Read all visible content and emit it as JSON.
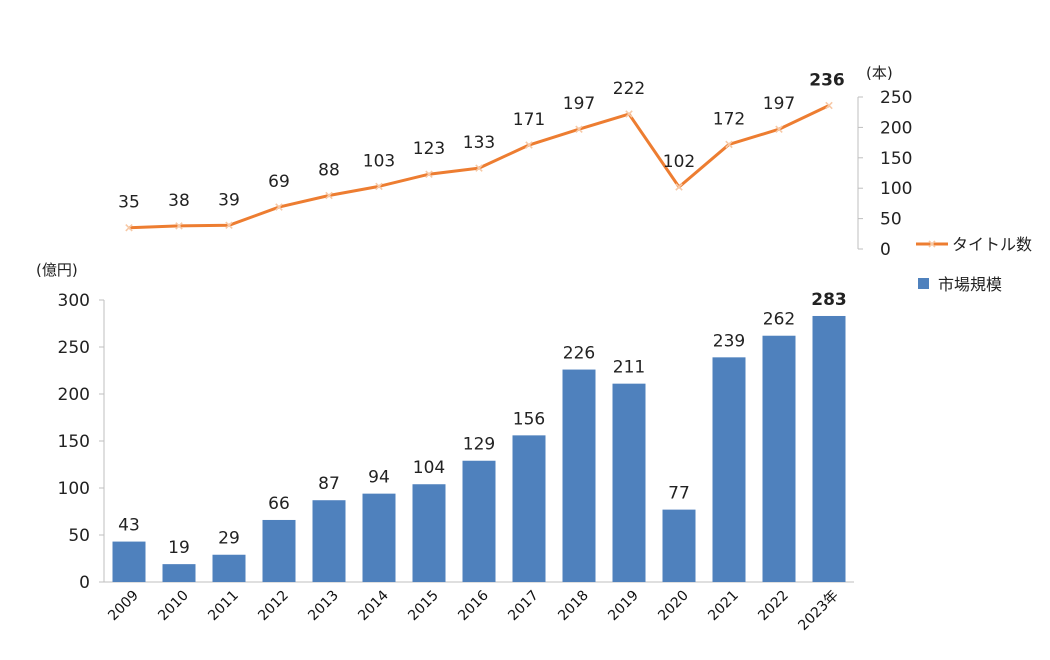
{
  "chart_data": [
    {
      "type": "line",
      "title": "",
      "xlabel": "",
      "ylabel": "",
      "y_unit": "(本)",
      "ylim": [
        0,
        250
      ],
      "y_ticks": [
        "0",
        "50",
        "100",
        "150",
        "200",
        "250"
      ],
      "axis_side": "right",
      "categories": [
        "2009",
        "2010",
        "2011",
        "2012",
        "2013",
        "2014",
        "2015",
        "2016",
        "2017",
        "2018",
        "2019",
        "2020",
        "2021",
        "2022",
        "2023年"
      ],
      "series": [
        {
          "name": "タイトル数",
          "values": [
            35,
            38,
            39,
            69,
            88,
            103,
            123,
            133,
            171,
            197,
            222,
            102,
            172,
            197,
            236
          ],
          "color": "#ED7D31",
          "marker": "x"
        }
      ],
      "data_labels": [
        "35",
        "38",
        "39",
        "69",
        "88",
        "103",
        "123",
        "133",
        "171",
        "197",
        "222",
        "102",
        "172",
        "197",
        "236"
      ],
      "highlight_label_color": "#ED7D31",
      "grid": false,
      "legend": "right"
    },
    {
      "type": "bar",
      "title": "",
      "xlabel": "",
      "ylabel": "",
      "y_unit": "(億円)",
      "ylim": [
        0,
        300
      ],
      "y_ticks": [
        "0",
        "50",
        "100",
        "150",
        "200",
        "250",
        "300"
      ],
      "axis_side": "left",
      "categories": [
        "2009",
        "2010",
        "2011",
        "2012",
        "2013",
        "2014",
        "2015",
        "2016",
        "2017",
        "2018",
        "2019",
        "2020",
        "2021",
        "2022",
        "2023年"
      ],
      "series": [
        {
          "name": "市場規模",
          "values": [
            43,
            19,
            29,
            66,
            87,
            94,
            104,
            129,
            156,
            226,
            211,
            77,
            239,
            262,
            283
          ],
          "color": "#4F81BD"
        }
      ],
      "data_labels": [
        "43",
        "19",
        "29",
        "66",
        "87",
        "94",
        "104",
        "129",
        "156",
        "226",
        "211",
        "77",
        "239",
        "262",
        "283"
      ],
      "highlight_label_color": "#4F81BD",
      "grid": false,
      "legend": "right"
    }
  ]
}
